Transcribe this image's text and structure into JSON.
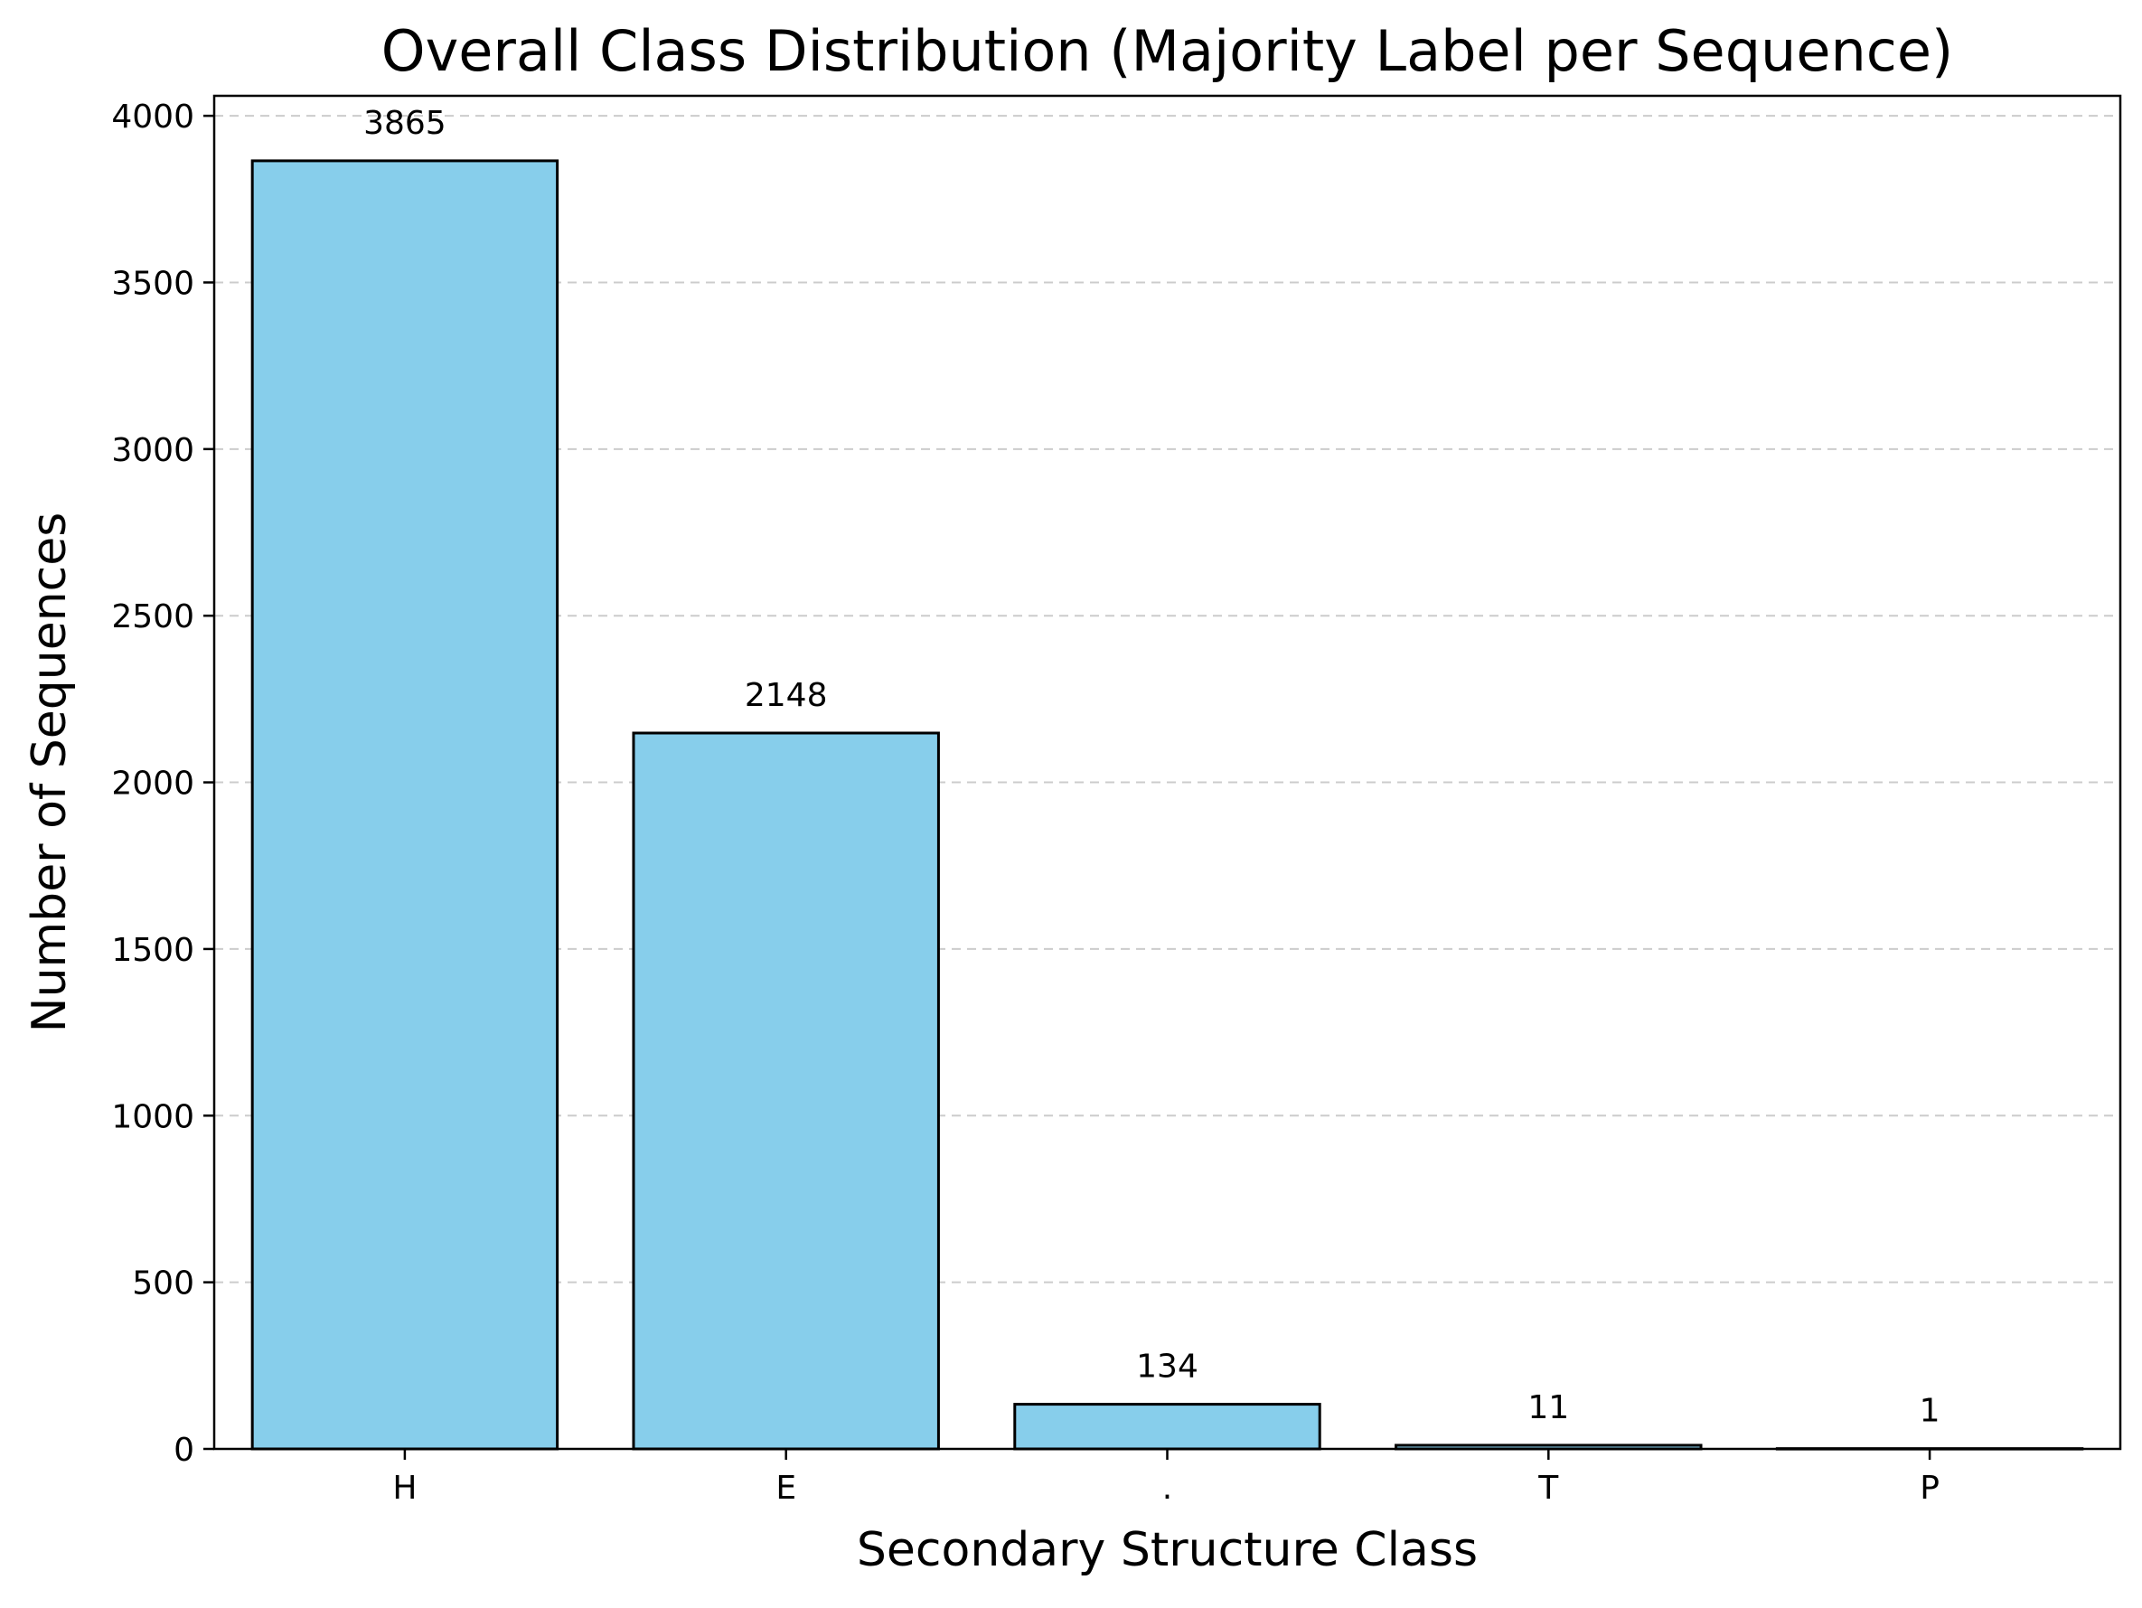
{
  "chart_data": {
    "type": "bar",
    "title": "Overall Class Distribution (Majority Label per Sequence)",
    "xlabel": "Secondary Structure Class",
    "ylabel": "Number of Sequences",
    "categories": [
      "H",
      "E",
      ".",
      "T",
      "P"
    ],
    "values": [
      3865,
      2148,
      134,
      11,
      1
    ],
    "data_labels": [
      "3865",
      "2148",
      "134",
      "11",
      "1"
    ],
    "ylim": [
      0,
      4060
    ],
    "yticks": [
      0,
      500,
      1000,
      1500,
      2000,
      2500,
      3000,
      3500,
      4000
    ],
    "ytick_labels": [
      "0",
      "500",
      "1000",
      "1500",
      "2000",
      "2500",
      "3000",
      "3500",
      "4000"
    ],
    "grid": "y-dashed",
    "legend": "none",
    "colors": {
      "bar_fill": "#87ceeb",
      "bar_edge": "#000000",
      "grid": "#cccccc"
    }
  }
}
